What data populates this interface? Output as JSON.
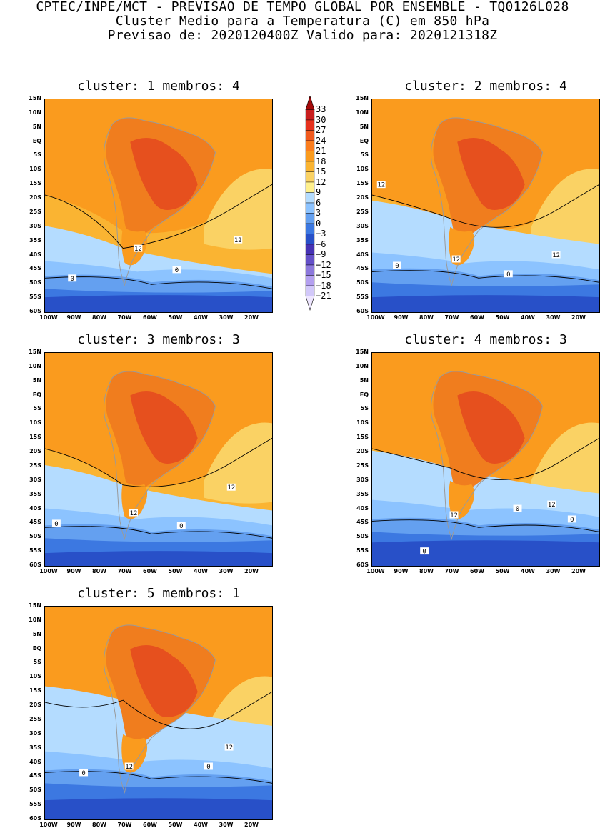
{
  "header": {
    "line1": "CPTEC/INPE/MCT - PREVISAO DE TEMPO GLOBAL POR ENSEMBLE - TQ0126L028",
    "line2": "Cluster Medio para a Temperatura (C) em 850 hPa",
    "line3": "Previsao de: 2020120400Z   Valido para: 2020121318Z"
  },
  "lat_labels": [
    "15N",
    "10N",
    "5N",
    "EQ",
    "5S",
    "10S",
    "15S",
    "20S",
    "25S",
    "30S",
    "35S",
    "40S",
    "45S",
    "50S",
    "55S",
    "60S"
  ],
  "lon_labels": [
    "100W",
    "90W",
    "80W",
    "70W",
    "60W",
    "50W",
    "40W",
    "30W",
    "20W"
  ],
  "panels": [
    {
      "title": "cluster: 1   membros: 4",
      "contour_labels": [
        "12",
        "12",
        "0",
        "0"
      ]
    },
    {
      "title": "cluster: 2   membros: 4",
      "contour_labels": [
        "12",
        "12",
        "12",
        "0",
        "0"
      ]
    },
    {
      "title": "cluster: 3   membros: 3",
      "contour_labels": [
        "12",
        "12",
        "0",
        "0"
      ]
    },
    {
      "title": "cluster: 4   membros: 3",
      "contour_labels": [
        "12",
        "12",
        "0",
        "0",
        "0"
      ]
    },
    {
      "title": "cluster: 5   membros: 1",
      "contour_labels": [
        "12",
        "12",
        "0",
        "0"
      ]
    }
  ],
  "colorbar": {
    "labels": [
      "33",
      "30",
      "27",
      "24",
      "21",
      "18",
      "15",
      "12",
      "9",
      "6",
      "3",
      "0",
      "-3",
      "-6",
      "-9",
      "-12",
      "-15",
      "-18",
      "-21"
    ],
    "colors": [
      "#a50a0a",
      "#c81e1e",
      "#e6321e",
      "#f05a1e",
      "#fa7d1e",
      "#fa9b1e",
      "#fab432",
      "#fad264",
      "#fff08c",
      "#b4dcff",
      "#8cc3ff",
      "#64a0f0",
      "#3c78e1",
      "#2850c8",
      "#4632b4",
      "#6450c8",
      "#8c78dc",
      "#b4a0f0",
      "#d2c8fa",
      "#eee6ff"
    ]
  }
}
